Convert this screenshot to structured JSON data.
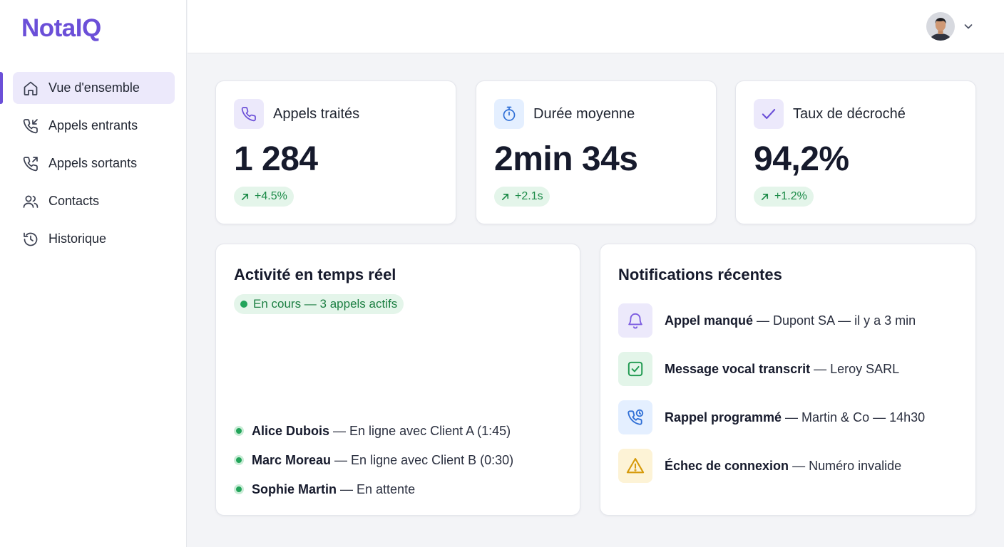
{
  "app": {
    "name": "NotaIQ"
  },
  "sidebar": {
    "items": [
      {
        "label": "Vue d'ensemble",
        "icon": "home-icon",
        "active": true
      },
      {
        "label": "Appels entrants",
        "icon": "phone-incoming-icon"
      },
      {
        "label": "Appels sortants",
        "icon": "phone-outgoing-icon"
      },
      {
        "label": "Contacts",
        "icon": "users-icon"
      },
      {
        "label": "Historique",
        "icon": "history-icon"
      }
    ]
  },
  "stats": [
    {
      "label": "Appels traités",
      "value": "1 284",
      "delta": "+4.5%",
      "icon": "phone-icon"
    },
    {
      "label": "Durée moyenne",
      "value": "2min 34s",
      "delta": "+2.1s",
      "icon": "stopwatch-icon"
    },
    {
      "label": "Taux de décroché",
      "value": "94,2%",
      "delta": "+1.2%",
      "icon": "check-icon"
    }
  ],
  "activity": {
    "title": "Activité en temps réel",
    "badge": "En cours — 3 appels actifs",
    "agents": [
      {
        "name": "Alice Dubois",
        "status": "— En ligne avec Client A (1:45)"
      },
      {
        "name": "Marc Moreau",
        "status": "— En ligne avec Client B (0:30)"
      },
      {
        "name": "Sophie Martin",
        "status": "— En attente"
      }
    ]
  },
  "notifications": {
    "title": "Notifications récentes",
    "items": [
      {
        "title": "Appel manqué",
        "detail": "— Dupont SA — il y a 3 min",
        "icon": "bell-icon",
        "color": "#7c5ce0",
        "bg": "#ece9fb"
      },
      {
        "title": "Message vocal transcrit",
        "detail": "— Leroy SARL",
        "icon": "check-square-icon",
        "color": "#1f9a50",
        "bg": "#e3f5e9"
      },
      {
        "title": "Rappel programmé",
        "detail": "— Martin & Co — 14h30",
        "icon": "phone-clock-icon",
        "color": "#2f6fd6",
        "bg": "#e4efff"
      },
      {
        "title": "Échec de connexion",
        "detail": "— Numéro invalide",
        "icon": "warning-icon",
        "color": "#d69a0a",
        "bg": "#fdf3d6"
      }
    ]
  },
  "colors": {
    "accent": "#6b4fd8",
    "success": "#22a45a",
    "wave_start": "#8b6fe0",
    "wave_mid": "#3f86e2"
  }
}
